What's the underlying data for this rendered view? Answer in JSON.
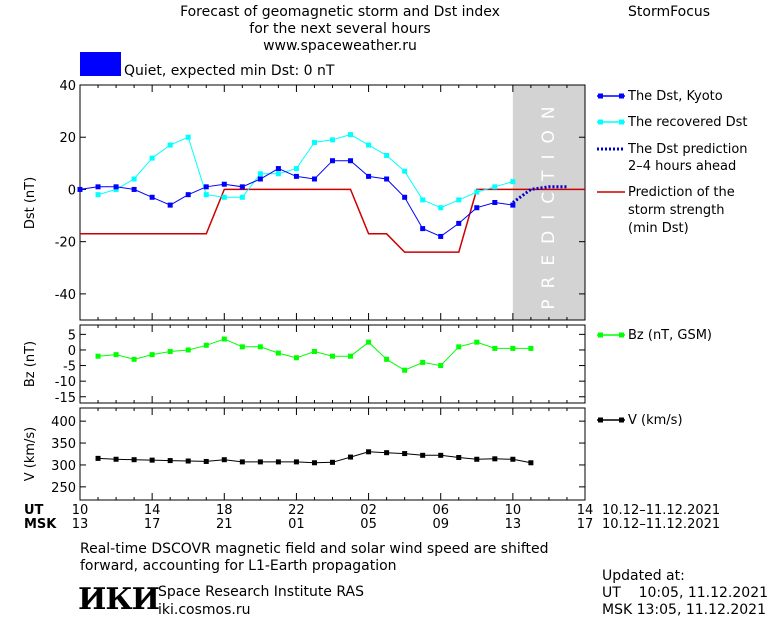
{
  "header": {
    "title_lines": [
      "Forecast of geomagnetic storm and Dst index",
      "for the next several hours",
      "www.spaceweather.ru"
    ],
    "brand": "StormFocus",
    "status_label": "Quiet, expected min Dst: 0 nT",
    "status_color": "#0000ff"
  },
  "footer": {
    "note_lines": [
      "Real-time DSCOVR magnetic field and solar wind speed are shifted",
      "forward, accounting for L1-Earth propagation"
    ],
    "logo_text": "ИКИ",
    "institute": "Space Research Institute RAS",
    "site": "iki.cosmos.ru",
    "updated_label": "Updated at:",
    "updated_ut": "UT    10:05, 11.12.2021",
    "updated_msk": "MSK 13:05, 11.12.2021"
  },
  "time_axis": {
    "ut_label": "UT",
    "msk_label": "MSK",
    "ut_ticks": [
      "10",
      "14",
      "18",
      "22",
      "02",
      "06",
      "10",
      "14"
    ],
    "msk_ticks": [
      "13",
      "17",
      "21",
      "01",
      "05",
      "09",
      "13",
      "17"
    ],
    "ut_range": "10.12–11.12.2021",
    "msk_range": "10.12–11.12.2021"
  },
  "chart_data": [
    {
      "type": "line",
      "ylabel": "Dst (nT)",
      "xlim": [
        0,
        28
      ],
      "ylim": [
        -50,
        40
      ],
      "yticks": [
        40,
        20,
        0,
        -20,
        -40
      ],
      "prediction_region": {
        "from": 24,
        "to": 28,
        "label": "PREDICTION",
        "color": "#d3d3d3"
      },
      "series": [
        {
          "name": "The Dst, Kyoto",
          "color": "#0000ff",
          "style": "line-square",
          "x": [
            0,
            1,
            2,
            3,
            4,
            5,
            6,
            7,
            8,
            9,
            10,
            11,
            12,
            13,
            14,
            15,
            16,
            17,
            18,
            19,
            20,
            21,
            22,
            23,
            24
          ],
          "y": [
            0,
            1,
            1,
            0,
            -3,
            -6,
            -2,
            1,
            2,
            1,
            4,
            8,
            5,
            4,
            11,
            11,
            5,
            4,
            -3,
            -15,
            -18,
            -13,
            -7,
            -5,
            -6
          ]
        },
        {
          "name": "The recovered Dst",
          "color": "#00ffff",
          "style": "line-square",
          "x": [
            1,
            2,
            3,
            4,
            5,
            6,
            7,
            8,
            9,
            10,
            11,
            12,
            13,
            14,
            15,
            16,
            17,
            18,
            19,
            20,
            21,
            22,
            23,
            24
          ],
          "y": [
            -2,
            0,
            4,
            12,
            17,
            20,
            -2,
            -3,
            -3,
            6,
            6,
            8,
            18,
            19,
            21,
            17,
            13,
            7,
            -4,
            -7,
            -4,
            -1,
            1,
            3
          ]
        },
        {
          "name": "The Dst prediction 2–4 hours ahead",
          "label_lines": [
            "The Dst prediction",
            "2–4 hours ahead"
          ],
          "color": "#0000cc",
          "style": "dotted",
          "x": [
            24,
            25,
            26,
            27
          ],
          "y": [
            -5,
            0,
            1,
            1
          ]
        },
        {
          "name": "Prediction of the storm strength (min Dst)",
          "label_lines": [
            "Prediction of the",
            "storm strength",
            "(min Dst)"
          ],
          "color": "#cc0000",
          "style": "step",
          "x": [
            0,
            7,
            8,
            14,
            15,
            16,
            17,
            18,
            21,
            22,
            28
          ],
          "y": [
            -17,
            -17,
            0,
            0,
            0,
            -17,
            -17,
            -24,
            -24,
            0,
            0
          ]
        }
      ]
    },
    {
      "type": "line",
      "ylabel": "Bz (nT)",
      "xlim": [
        0,
        28
      ],
      "ylim": [
        -17,
        8
      ],
      "yticks": [
        5,
        0,
        -5,
        -10,
        -15
      ],
      "series": [
        {
          "name": "Bz (nT, GSM)",
          "color": "#00ff00",
          "x": [
            1,
            2,
            3,
            4,
            5,
            6,
            7,
            8,
            9,
            10,
            11,
            12,
            13,
            14,
            15,
            16,
            17,
            18,
            19,
            20,
            21,
            22,
            23,
            24,
            25
          ],
          "y": [
            -2,
            -1.5,
            -3,
            -1.5,
            -0.5,
            0,
            1.5,
            3.5,
            1,
            1,
            -1,
            -2.5,
            -0.5,
            -2,
            -2,
            2.5,
            -3,
            -6.5,
            -4,
            -5,
            1,
            2.5,
            0.5,
            0.5,
            0.5
          ]
        }
      ]
    },
    {
      "type": "line",
      "ylabel": "V (km/s)",
      "xlim": [
        0,
        28
      ],
      "ylim": [
        220,
        430
      ],
      "yticks": [
        400,
        350,
        300,
        250
      ],
      "series": [
        {
          "name": "V (km/s)",
          "color": "#000000",
          "x": [
            1,
            2,
            3,
            4,
            5,
            6,
            7,
            8,
            9,
            10,
            11,
            12,
            13,
            14,
            15,
            16,
            17,
            18,
            19,
            20,
            21,
            22,
            23,
            24,
            25
          ],
          "y": [
            315,
            313,
            312,
            311,
            310,
            309,
            308,
            312,
            307,
            307,
            307,
            307,
            305,
            306,
            318,
            330,
            328,
            326,
            322,
            322,
            317,
            313,
            314,
            313,
            305
          ]
        }
      ]
    }
  ]
}
